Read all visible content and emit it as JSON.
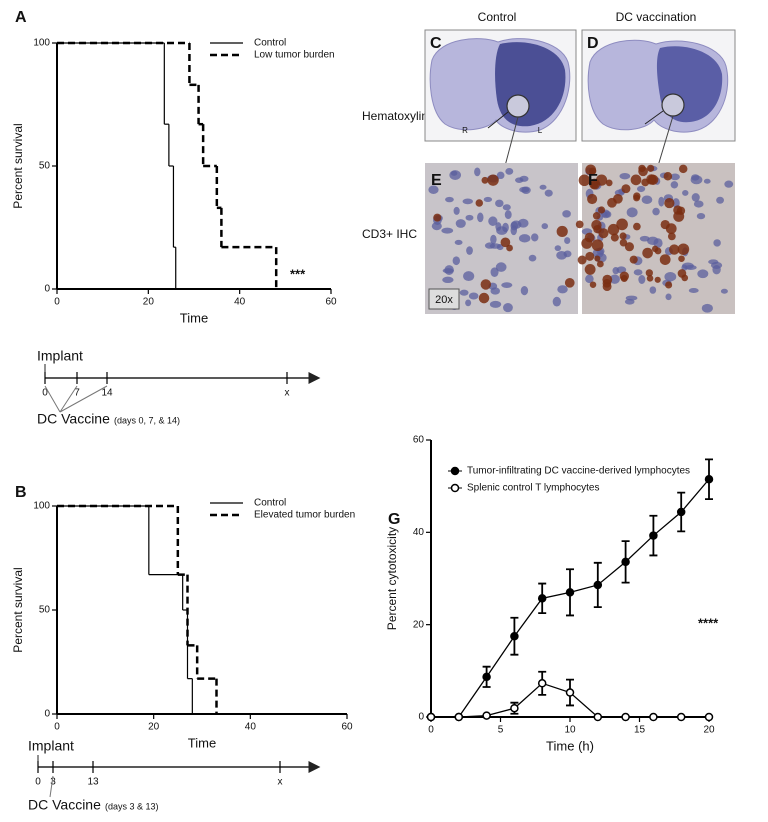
{
  "chart_data": [
    {
      "type": "step",
      "panel": "A",
      "xlabel": "Time",
      "ylabel": "Percent survival",
      "xlim": [
        0,
        60
      ],
      "xticks": [
        0,
        20,
        40,
        60
      ],
      "ylim": [
        0,
        100
      ],
      "yticks": [
        0,
        50,
        100
      ],
      "annotation": "***",
      "series": [
        {
          "name": "Control",
          "color": "#000000",
          "dashed": false,
          "x": [
            0,
            23.5,
            24.5,
            25.5,
            26
          ],
          "values": [
            100,
            67,
            50,
            17,
            0
          ]
        },
        {
          "name": "Low tumor burden",
          "color": "#000000",
          "dashed": true,
          "x": [
            0,
            29,
            31,
            32,
            35,
            36,
            48
          ],
          "values": [
            100,
            83,
            67,
            50,
            33,
            17,
            0
          ]
        }
      ]
    },
    {
      "type": "step",
      "panel": "B",
      "xlabel": "Time",
      "ylabel": "Percent survival",
      "xlim": [
        0,
        60
      ],
      "xticks": [
        0,
        20,
        40,
        60
      ],
      "ylim": [
        0,
        100
      ],
      "yticks": [
        0,
        50,
        100
      ],
      "series": [
        {
          "name": "Control",
          "color": "#000000",
          "dashed": false,
          "x": [
            0,
            19,
            26,
            27,
            28
          ],
          "values": [
            100,
            67,
            50,
            17,
            0
          ]
        },
        {
          "name": "Elevated tumor burden",
          "color": "#000000",
          "dashed": true,
          "x": [
            0,
            25,
            27,
            29,
            33
          ],
          "values": [
            100,
            67,
            33,
            17,
            0
          ]
        }
      ]
    },
    {
      "type": "line",
      "panel": "G",
      "xlabel": "Time (h)",
      "ylabel": "Percent  cytotoxicity",
      "xlim": [
        0,
        20
      ],
      "xticks": [
        0,
        5,
        10,
        15,
        20
      ],
      "ylim": [
        0,
        60
      ],
      "yticks": [
        0,
        20,
        40,
        60
      ],
      "annotation": "****",
      "x": [
        0,
        2,
        4,
        6,
        8,
        10,
        12,
        14,
        16,
        18,
        20
      ],
      "series": [
        {
          "name": "Tumor-infiltrating DC vaccine-derived lymphocytes",
          "color": "#000000",
          "marker": "filled",
          "values": [
            0,
            0,
            8.7,
            17.5,
            25.7,
            27,
            28.6,
            33.6,
            39.3,
            44.4,
            51.5
          ],
          "errors": [
            0,
            0,
            2.2,
            4,
            3.2,
            5,
            4.8,
            4.5,
            4.3,
            4.2,
            4.3
          ]
        },
        {
          "name": "Splenic control T lymphocytes",
          "color": "#000000",
          "marker": "open",
          "values": [
            0,
            0,
            0.3,
            1.9,
            7.3,
            5.3,
            0,
            0,
            0,
            0,
            0
          ],
          "errors": [
            0,
            0,
            0,
            1.2,
            2.5,
            2.8,
            0,
            0,
            0,
            0,
            0
          ]
        }
      ]
    }
  ],
  "images": {
    "columns": [
      "Control",
      "DC vaccination"
    ],
    "rows": [
      "Hematoxylin",
      "CD3+ IHC"
    ],
    "panels": [
      "C",
      "D",
      "E",
      "F"
    ],
    "hemispheres": [
      "R",
      "L"
    ],
    "magnification": "20x"
  },
  "timelines": [
    {
      "start": "Implant",
      "ticks": [
        "0",
        "7",
        "14",
        "x"
      ],
      "label": "DC Vaccine",
      "note": "(days 0, 7, & 14)"
    },
    {
      "start": "Implant",
      "ticks": [
        "0",
        "3",
        "13",
        "x"
      ],
      "label": "DC Vaccine",
      "note": "(days 3 & 13)"
    }
  ]
}
